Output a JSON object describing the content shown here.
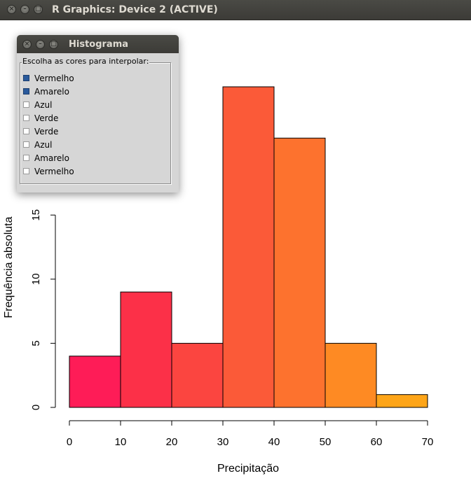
{
  "window": {
    "title": "R Graphics: Device 2 (ACTIVE)",
    "buttons": {
      "close": "×",
      "minimize": "–",
      "maximize": "□"
    }
  },
  "dialog": {
    "title": "Histograma",
    "group_label": "Escolha as cores para interpolar:",
    "options": [
      {
        "label": "Vermelho",
        "checked": true
      },
      {
        "label": "Amarelo",
        "checked": true
      },
      {
        "label": "Azul",
        "checked": false
      },
      {
        "label": "Verde",
        "checked": false
      },
      {
        "label": "Verde",
        "checked": false
      },
      {
        "label": "Azul",
        "checked": false
      },
      {
        "label": "Amarelo",
        "checked": false
      },
      {
        "label": "Vermelho",
        "checked": false
      }
    ]
  },
  "chart_data": {
    "type": "bar",
    "title": "",
    "xlabel": "Precipitação",
    "ylabel": "Frequência absoluta",
    "breaks": [
      0,
      10,
      20,
      30,
      40,
      50,
      60,
      70
    ],
    "values": [
      4,
      9,
      5,
      25,
      21,
      5,
      1
    ],
    "colors": [
      "#fe1c57",
      "#fc3048",
      "#fb4540",
      "#fb5a38",
      "#fd722e",
      "#fe8a23",
      "#fea518"
    ],
    "x_ticks": [
      0,
      10,
      20,
      30,
      40,
      50,
      60,
      70
    ],
    "y_ticks": [
      0,
      5,
      10,
      15
    ],
    "xlim": [
      0,
      70
    ],
    "ylim": [
      0,
      25
    ],
    "grid": false,
    "legend": "none"
  }
}
